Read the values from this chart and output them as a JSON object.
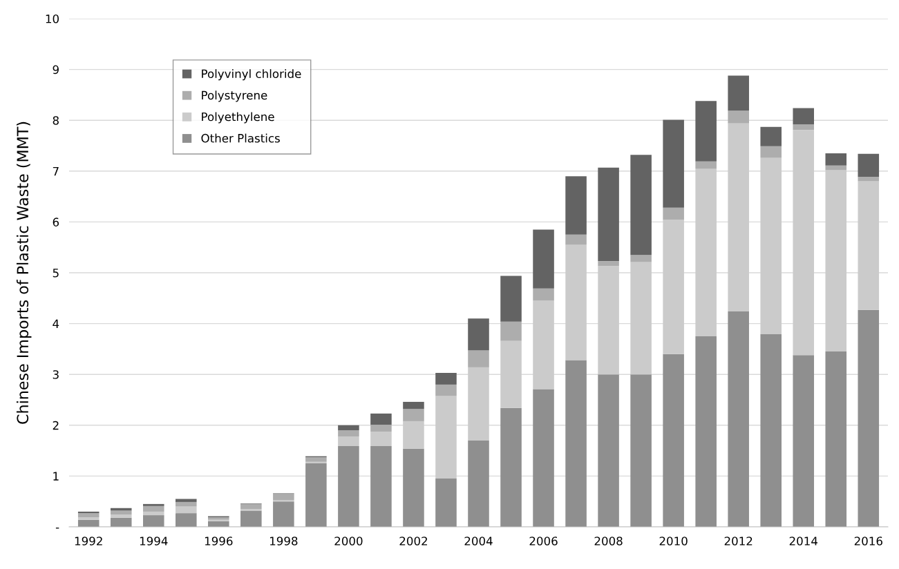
{
  "chart_data": {
    "type": "bar",
    "stacked": true,
    "ylabel": "Chinese Imports of Plastic Waste (MMT)",
    "categories": [
      "1992",
      null,
      "1994",
      null,
      "1996",
      null,
      "1998",
      null,
      "2000",
      null,
      "2002",
      null,
      "2004",
      null,
      "2006",
      null,
      "2008",
      null,
      "2010",
      null,
      "2012",
      null,
      "2014",
      null,
      "2016"
    ],
    "series": [
      {
        "name": "Other Plastics",
        "color": "#8f8f8f",
        "values": [
          0.14,
          0.18,
          0.23,
          0.27,
          0.11,
          0.32,
          0.5,
          1.25,
          1.59,
          1.59,
          1.54,
          0.95,
          1.7,
          2.34,
          2.71,
          3.28,
          3.0,
          3.0,
          3.4,
          3.75,
          4.24,
          3.79,
          3.38,
          3.45,
          4.27
        ]
      },
      {
        "name": "Polyethylene",
        "color": "#cbcbcb",
        "values": [
          0.05,
          0.06,
          0.07,
          0.13,
          0.03,
          0.03,
          0.03,
          0.03,
          0.19,
          0.28,
          0.54,
          1.63,
          1.44,
          1.32,
          1.74,
          2.27,
          2.13,
          2.21,
          2.64,
          3.3,
          3.7,
          3.47,
          4.43,
          3.57,
          2.53
        ]
      },
      {
        "name": "Polystyrene",
        "color": "#adadad",
        "values": [
          0.08,
          0.08,
          0.11,
          0.09,
          0.05,
          0.1,
          0.12,
          0.09,
          0.12,
          0.14,
          0.24,
          0.22,
          0.33,
          0.38,
          0.24,
          0.2,
          0.1,
          0.14,
          0.24,
          0.14,
          0.25,
          0.23,
          0.11,
          0.09,
          0.09
        ]
      },
      {
        "name": "Polyvinyl chloride",
        "color": "#636363",
        "values": [
          0.03,
          0.05,
          0.04,
          0.06,
          0.02,
          0.01,
          0.01,
          0.02,
          0.1,
          0.22,
          0.14,
          0.23,
          0.63,
          0.9,
          1.16,
          1.15,
          1.84,
          1.97,
          1.73,
          1.19,
          0.69,
          0.38,
          0.32,
          0.24,
          0.45
        ]
      }
    ],
    "ylim": [
      0,
      10
    ],
    "yticks": [
      {
        "value": 0,
        "label": "-"
      },
      1,
      2,
      3,
      4,
      5,
      6,
      7,
      8,
      9,
      10
    ],
    "grid": "y",
    "legend": "top left"
  }
}
